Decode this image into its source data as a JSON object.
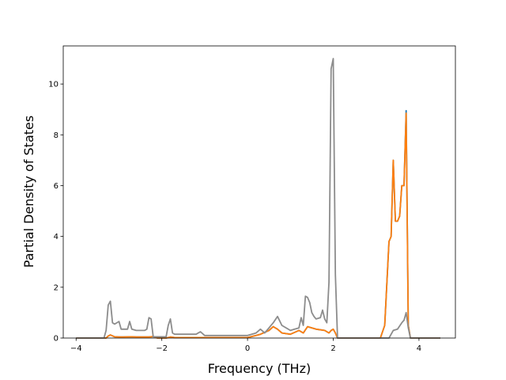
{
  "chart_data": {
    "type": "line",
    "title": "",
    "xlabel": "Frequency (THz)",
    "ylabel": "Partial Density of States",
    "xlim": [
      -4.3,
      4.85
    ],
    "ylim": [
      0,
      11.5
    ],
    "xticks": [
      -4,
      -2,
      0,
      2,
      4
    ],
    "yticks": [
      0,
      2,
      4,
      6,
      8,
      10
    ],
    "xtick_labels": [
      "−4",
      "−2",
      "0",
      "2",
      "4"
    ],
    "ytick_labels": [
      "0",
      "2",
      "4",
      "6",
      "8",
      "10"
    ],
    "grid": false,
    "legend": false,
    "series": [
      {
        "color": "#1f77b4",
        "x": [
          -4.0,
          -3.3,
          -3.25,
          -3.2,
          -3.1,
          -3.0,
          -2.9,
          -2.7,
          -2.6,
          -2.3,
          -2.2,
          -2.1,
          -1.9,
          -1.8,
          -1.7,
          -0.5,
          0.0,
          0.2,
          0.3,
          0.5,
          0.6,
          0.7,
          0.8,
          1.0,
          1.2,
          1.3,
          1.4,
          1.6,
          1.8,
          1.9,
          1.95,
          2.0,
          2.05,
          2.1,
          3.1,
          3.2,
          3.3,
          3.35,
          3.4,
          3.45,
          3.5,
          3.55,
          3.6,
          3.65,
          3.7,
          3.75,
          3.8,
          4.5
        ],
        "y": [
          0,
          0,
          0.08,
          0.12,
          0.05,
          0.04,
          0.04,
          0.05,
          0.04,
          0.04,
          0.06,
          0,
          0,
          0.04,
          0.02,
          0.02,
          0.02,
          0.1,
          0.15,
          0.3,
          0.45,
          0.35,
          0.2,
          0.15,
          0.3,
          0.2,
          0.45,
          0.35,
          0.3,
          0.2,
          0.3,
          0.35,
          0.2,
          0,
          0,
          0.5,
          3.8,
          4.0,
          7.0,
          4.6,
          4.6,
          4.8,
          6.0,
          6.0,
          8.95,
          0.5,
          0,
          0
        ]
      },
      {
        "color": "#ff7f0e",
        "x": [
          -4.0,
          -3.3,
          -3.25,
          -3.2,
          -3.1,
          -3.0,
          -2.9,
          -2.7,
          -2.6,
          -2.3,
          -2.2,
          -2.1,
          -1.9,
          -1.8,
          -1.7,
          -0.5,
          0.0,
          0.2,
          0.3,
          0.5,
          0.6,
          0.7,
          0.8,
          1.0,
          1.2,
          1.3,
          1.4,
          1.6,
          1.8,
          1.9,
          1.95,
          2.0,
          2.05,
          2.1,
          3.1,
          3.2,
          3.3,
          3.35,
          3.4,
          3.45,
          3.5,
          3.55,
          3.6,
          3.65,
          3.7,
          3.75,
          3.8,
          4.5
        ],
        "y": [
          0,
          0,
          0.08,
          0.12,
          0.05,
          0.04,
          0.04,
          0.05,
          0.04,
          0.04,
          0.06,
          0,
          0,
          0.04,
          0.02,
          0.02,
          0.02,
          0.1,
          0.15,
          0.3,
          0.45,
          0.35,
          0.2,
          0.15,
          0.3,
          0.2,
          0.45,
          0.35,
          0.3,
          0.2,
          0.3,
          0.35,
          0.2,
          0,
          0,
          0.5,
          3.8,
          4.0,
          7.0,
          4.6,
          4.6,
          4.8,
          6.0,
          6.0,
          8.85,
          0.5,
          0,
          0
        ]
      },
      {
        "color": "#8c8c8c",
        "x": [
          -4.0,
          -3.35,
          -3.3,
          -3.25,
          -3.2,
          -3.15,
          -3.1,
          -3.0,
          -2.95,
          -2.9,
          -2.8,
          -2.75,
          -2.7,
          -2.6,
          -2.4,
          -2.35,
          -2.3,
          -2.25,
          -2.2,
          -1.9,
          -1.85,
          -1.8,
          -1.75,
          -1.7,
          -1.6,
          -1.2,
          -1.1,
          -1.0,
          -0.5,
          0.0,
          0.2,
          0.3,
          0.4,
          0.5,
          0.6,
          0.7,
          0.8,
          1.0,
          1.1,
          1.2,
          1.25,
          1.3,
          1.35,
          1.4,
          1.45,
          1.5,
          1.55,
          1.6,
          1.7,
          1.75,
          1.8,
          1.85,
          1.9,
          1.95,
          2.0,
          2.05,
          2.1,
          3.3,
          3.4,
          3.5,
          3.6,
          3.65,
          3.7,
          3.75,
          3.8,
          4.5
        ],
        "y": [
          0,
          0,
          0.3,
          1.3,
          1.45,
          0.6,
          0.55,
          0.65,
          0.35,
          0.35,
          0.35,
          0.65,
          0.35,
          0.3,
          0.3,
          0.35,
          0.8,
          0.75,
          0.05,
          0.05,
          0.5,
          0.75,
          0.2,
          0.15,
          0.15,
          0.15,
          0.25,
          0.1,
          0.1,
          0.1,
          0.2,
          0.35,
          0.2,
          0.4,
          0.6,
          0.85,
          0.5,
          0.3,
          0.35,
          0.4,
          0.8,
          0.5,
          1.65,
          1.6,
          1.4,
          1.0,
          0.85,
          0.75,
          0.8,
          1.1,
          0.75,
          0.6,
          2.2,
          10.6,
          11.0,
          2.5,
          0,
          0,
          0.3,
          0.35,
          0.6,
          0.7,
          1.0,
          0.4,
          0,
          0
        ]
      }
    ]
  }
}
